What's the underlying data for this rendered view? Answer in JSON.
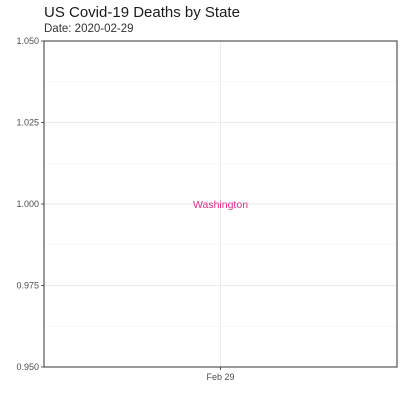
{
  "chart_data": {
    "type": "scatter",
    "title": "US Covid-19 Deaths by State",
    "subtitle": "Date: 2020-02-29",
    "xlabel": "",
    "ylabel": "",
    "x_ticks": [
      "Feb 29"
    ],
    "y_ticks": [
      1.05,
      1.025,
      1.0,
      0.975,
      0.95
    ],
    "y_tick_labels": [
      "1.050",
      "1.025",
      "1.000",
      "0.975",
      "0.950"
    ],
    "ylim": [
      0.95,
      1.05
    ],
    "grid": true,
    "legend": "none",
    "points": [
      {
        "label": "Washington",
        "x": "Feb 29",
        "y": 1.0,
        "color": "#e7298a"
      }
    ]
  }
}
